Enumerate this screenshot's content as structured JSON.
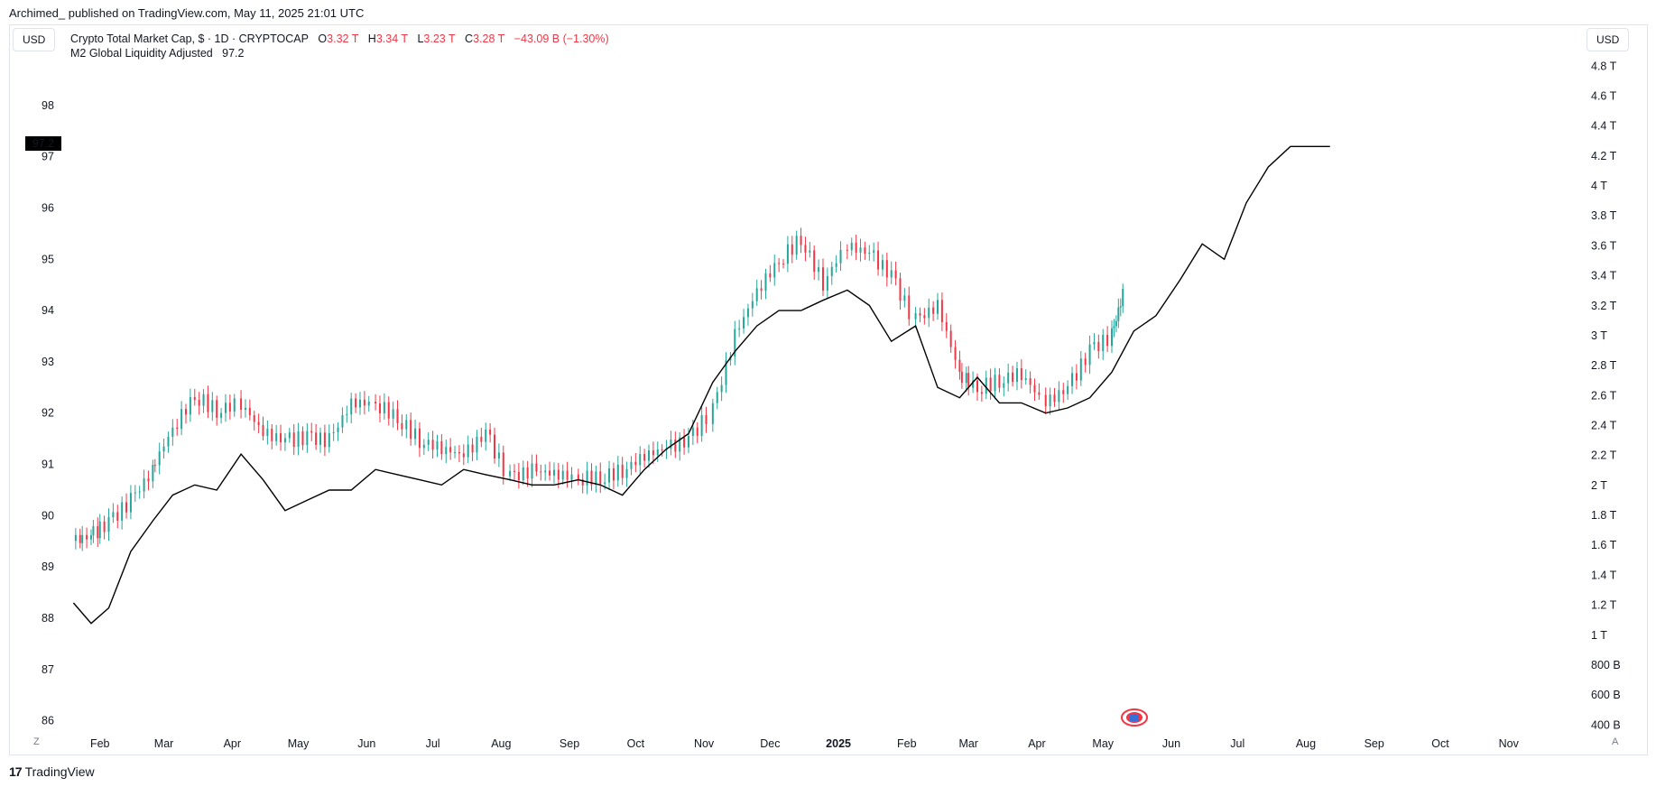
{
  "publisher": "Archimed_ published on TradingView.com, May 11, 2025 21:01 UTC",
  "currency_left": "USD",
  "currency_right": "USD",
  "legend": {
    "main_title": "Crypto Total Market Cap, $ · 1D · CRYPTOCAP",
    "o_label": "O",
    "o_value": "3.32 T",
    "h_label": "H",
    "h_value": "3.34 T",
    "l_label": "L",
    "l_value": "3.23 T",
    "c_label": "C",
    "c_value": "3.28 T",
    "change": "−43.09 B (−1.30%)",
    "indicator": "M2 Global Liquidity Adjusted",
    "indicator_value": "97.2"
  },
  "price_label": "97.2",
  "z_button": "Z",
  "a_button": "A",
  "brand": "TradingView",
  "colors": {
    "up": "#26a69a",
    "down": "#f23645",
    "line": "#000000",
    "grid": "#e0e3eb"
  },
  "chart_data": {
    "type": "line",
    "left_axis": {
      "ticks": [
        "86",
        "87",
        "88",
        "89",
        "90",
        "91",
        "92",
        "93",
        "94",
        "95",
        "96",
        "97",
        "98"
      ],
      "ylim": [
        85.8,
        99
      ]
    },
    "right_axis": {
      "ticks": [
        "400 B",
        "600 B",
        "800 B",
        "1 T",
        "1.2 T",
        "1.4 T",
        "1.6 T",
        "1.8 T",
        "2 T",
        "2.2 T",
        "2.4 T",
        "2.6 T",
        "2.8 T",
        "3 T",
        "3.2 T",
        "3.4 T",
        "3.6 T",
        "3.8 T",
        "4 T",
        "4.2 T",
        "4.4 T",
        "4.6 T",
        "4.8 T"
      ],
      "ylim": [
        0.36,
        4.88
      ]
    },
    "x_ticks": [
      "Feb",
      "Mar",
      "Apr",
      "May",
      "Jun",
      "Jul",
      "Aug",
      "Sep",
      "Oct",
      "Nov",
      "Dec",
      "2025",
      "Feb",
      "Mar",
      "Apr",
      "May",
      "Jun",
      "Jul",
      "Aug",
      "Sep",
      "Oct",
      "Nov"
    ],
    "series": [
      {
        "name": "M2 Global Liquidity Adjusted",
        "axis": "left",
        "x": [
          "2024-01-20",
          "2024-01-28",
          "2024-02-05",
          "2024-02-15",
          "2024-02-25",
          "2024-03-05",
          "2024-03-15",
          "2024-03-25",
          "2024-04-05",
          "2024-04-15",
          "2024-04-25",
          "2024-05-05",
          "2024-05-15",
          "2024-05-25",
          "2024-06-05",
          "2024-06-15",
          "2024-06-25",
          "2024-07-05",
          "2024-07-15",
          "2024-07-25",
          "2024-08-05",
          "2024-08-15",
          "2024-08-25",
          "2024-09-05",
          "2024-09-15",
          "2024-09-25",
          "2024-10-05",
          "2024-10-15",
          "2024-10-25",
          "2024-11-05",
          "2024-11-15",
          "2024-11-25",
          "2024-12-05",
          "2024-12-15",
          "2024-12-25",
          "2025-01-05",
          "2025-01-15",
          "2025-01-25",
          "2025-02-05",
          "2025-02-15",
          "2025-02-25",
          "2025-03-05",
          "2025-03-15",
          "2025-03-25",
          "2025-04-05",
          "2025-04-15",
          "2025-04-25",
          "2025-05-05",
          "2025-05-15",
          "2025-05-25",
          "2025-06-05",
          "2025-06-15",
          "2025-06-25",
          "2025-07-05",
          "2025-07-15",
          "2025-07-25",
          "2025-08-05",
          "2025-08-12"
        ],
        "values": [
          88.3,
          87.9,
          88.2,
          89.3,
          89.9,
          90.4,
          90.6,
          90.5,
          91.2,
          90.7,
          90.1,
          90.3,
          90.5,
          90.5,
          90.9,
          90.8,
          90.7,
          90.6,
          90.9,
          90.8,
          90.7,
          90.6,
          90.6,
          90.7,
          90.6,
          90.4,
          90.9,
          91.3,
          91.6,
          92.6,
          93.2,
          93.7,
          94.0,
          94.0,
          94.2,
          94.4,
          94.1,
          93.4,
          93.7,
          92.5,
          92.3,
          92.7,
          92.2,
          92.2,
          92.0,
          92.1,
          92.3,
          92.8,
          93.6,
          93.9,
          94.6,
          95.3,
          95.0,
          96.1,
          96.8,
          97.2,
          97.2,
          97.2
        ]
      },
      {
        "name": "Crypto Total Market Cap",
        "axis": "right",
        "type": "candlestick",
        "x": [
          "2024-01-20",
          "2024-01-28",
          "2024-02-05",
          "2024-02-15",
          "2024-02-25",
          "2024-03-05",
          "2024-03-15",
          "2024-03-25",
          "2024-04-05",
          "2024-04-15",
          "2024-04-25",
          "2024-05-05",
          "2024-05-15",
          "2024-05-25",
          "2024-06-05",
          "2024-06-15",
          "2024-06-25",
          "2024-07-05",
          "2024-07-15",
          "2024-07-25",
          "2024-08-05",
          "2024-08-15",
          "2024-08-25",
          "2024-09-05",
          "2024-09-15",
          "2024-09-25",
          "2024-10-05",
          "2024-10-15",
          "2024-10-25",
          "2024-11-05",
          "2024-11-15",
          "2024-11-25",
          "2024-12-05",
          "2024-12-15",
          "2024-12-25",
          "2025-01-05",
          "2025-01-15",
          "2025-01-25",
          "2025-02-05",
          "2025-02-15",
          "2025-02-25",
          "2025-03-05",
          "2025-03-15",
          "2025-03-25",
          "2025-04-05",
          "2025-04-15",
          "2025-04-25",
          "2025-05-05",
          "2025-05-10"
        ],
        "values": [
          1.63,
          1.66,
          1.75,
          1.9,
          2.1,
          2.38,
          2.6,
          2.5,
          2.55,
          2.35,
          2.3,
          2.32,
          2.3,
          2.55,
          2.55,
          2.45,
          2.3,
          2.25,
          2.2,
          2.35,
          2.05,
          2.1,
          2.08,
          2.05,
          2.05,
          2.1,
          2.2,
          2.25,
          2.3,
          2.5,
          3.0,
          3.3,
          3.5,
          3.65,
          3.35,
          3.6,
          3.55,
          3.4,
          3.1,
          3.2,
          2.75,
          2.65,
          2.7,
          2.75,
          2.55,
          2.65,
          2.9,
          3.0,
          3.28
        ]
      }
    ],
    "grid": false,
    "title": "Crypto Total Market Cap, $ · 1D · CRYPTOCAP"
  }
}
